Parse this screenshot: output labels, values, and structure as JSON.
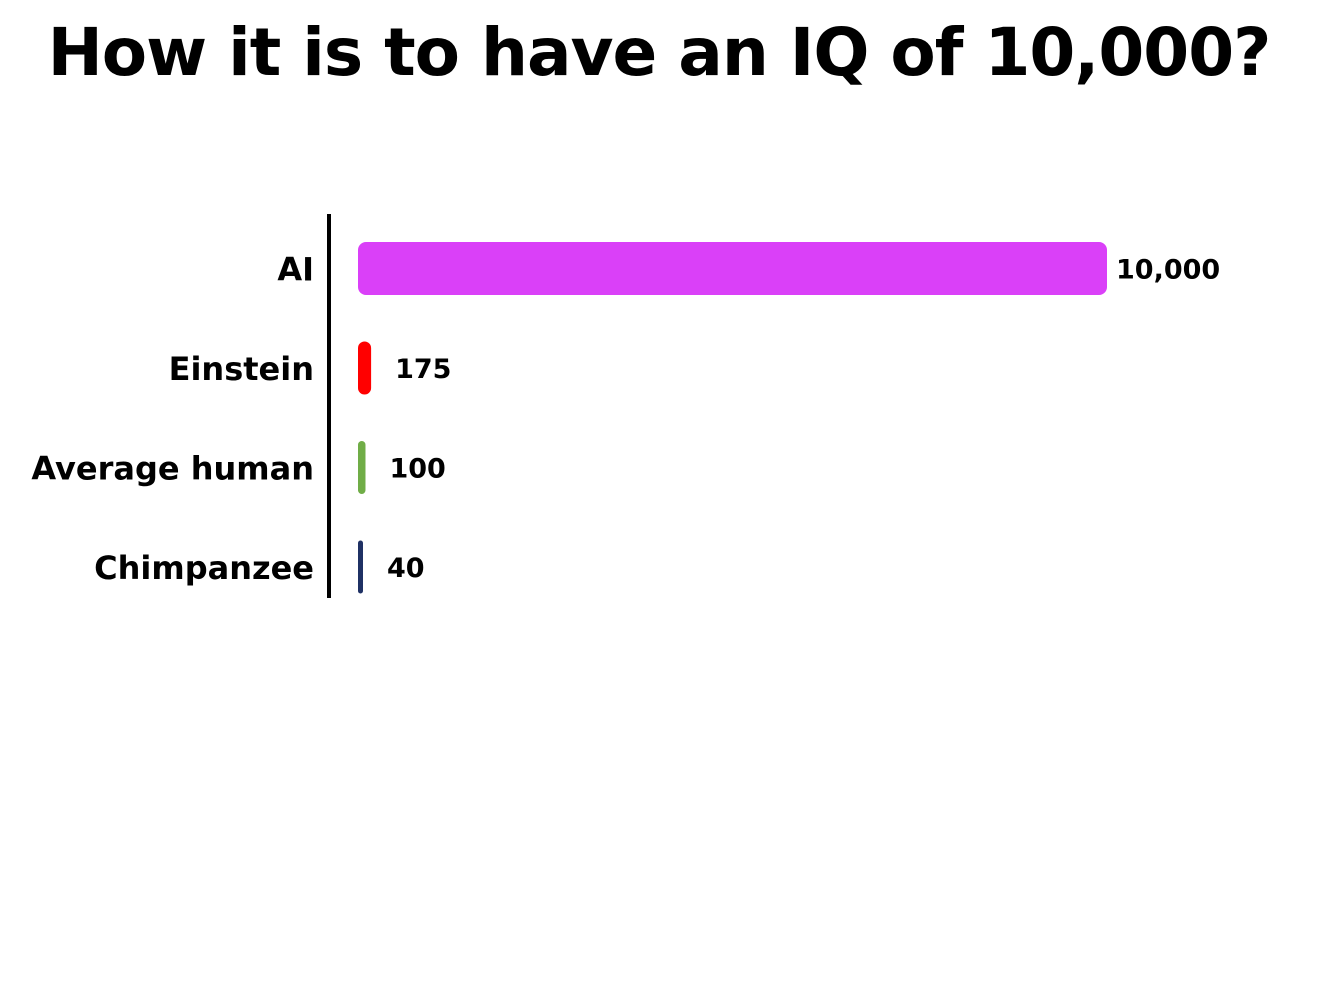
{
  "chart_data": {
    "type": "bar",
    "orientation": "horizontal",
    "title": "How it is to have an IQ of 10,000?",
    "categories": [
      "AI",
      "Einstein",
      "Average human",
      "Chimpanzee"
    ],
    "values": [
      10000,
      175,
      100,
      40
    ],
    "value_labels": [
      "10,000",
      "175",
      "100",
      "40"
    ],
    "colors": [
      "#DA40F8",
      "#FF0000",
      "#70AD47",
      "#1F3164"
    ],
    "xlim": [
      0,
      10000
    ],
    "grid": false,
    "legend": "none"
  }
}
